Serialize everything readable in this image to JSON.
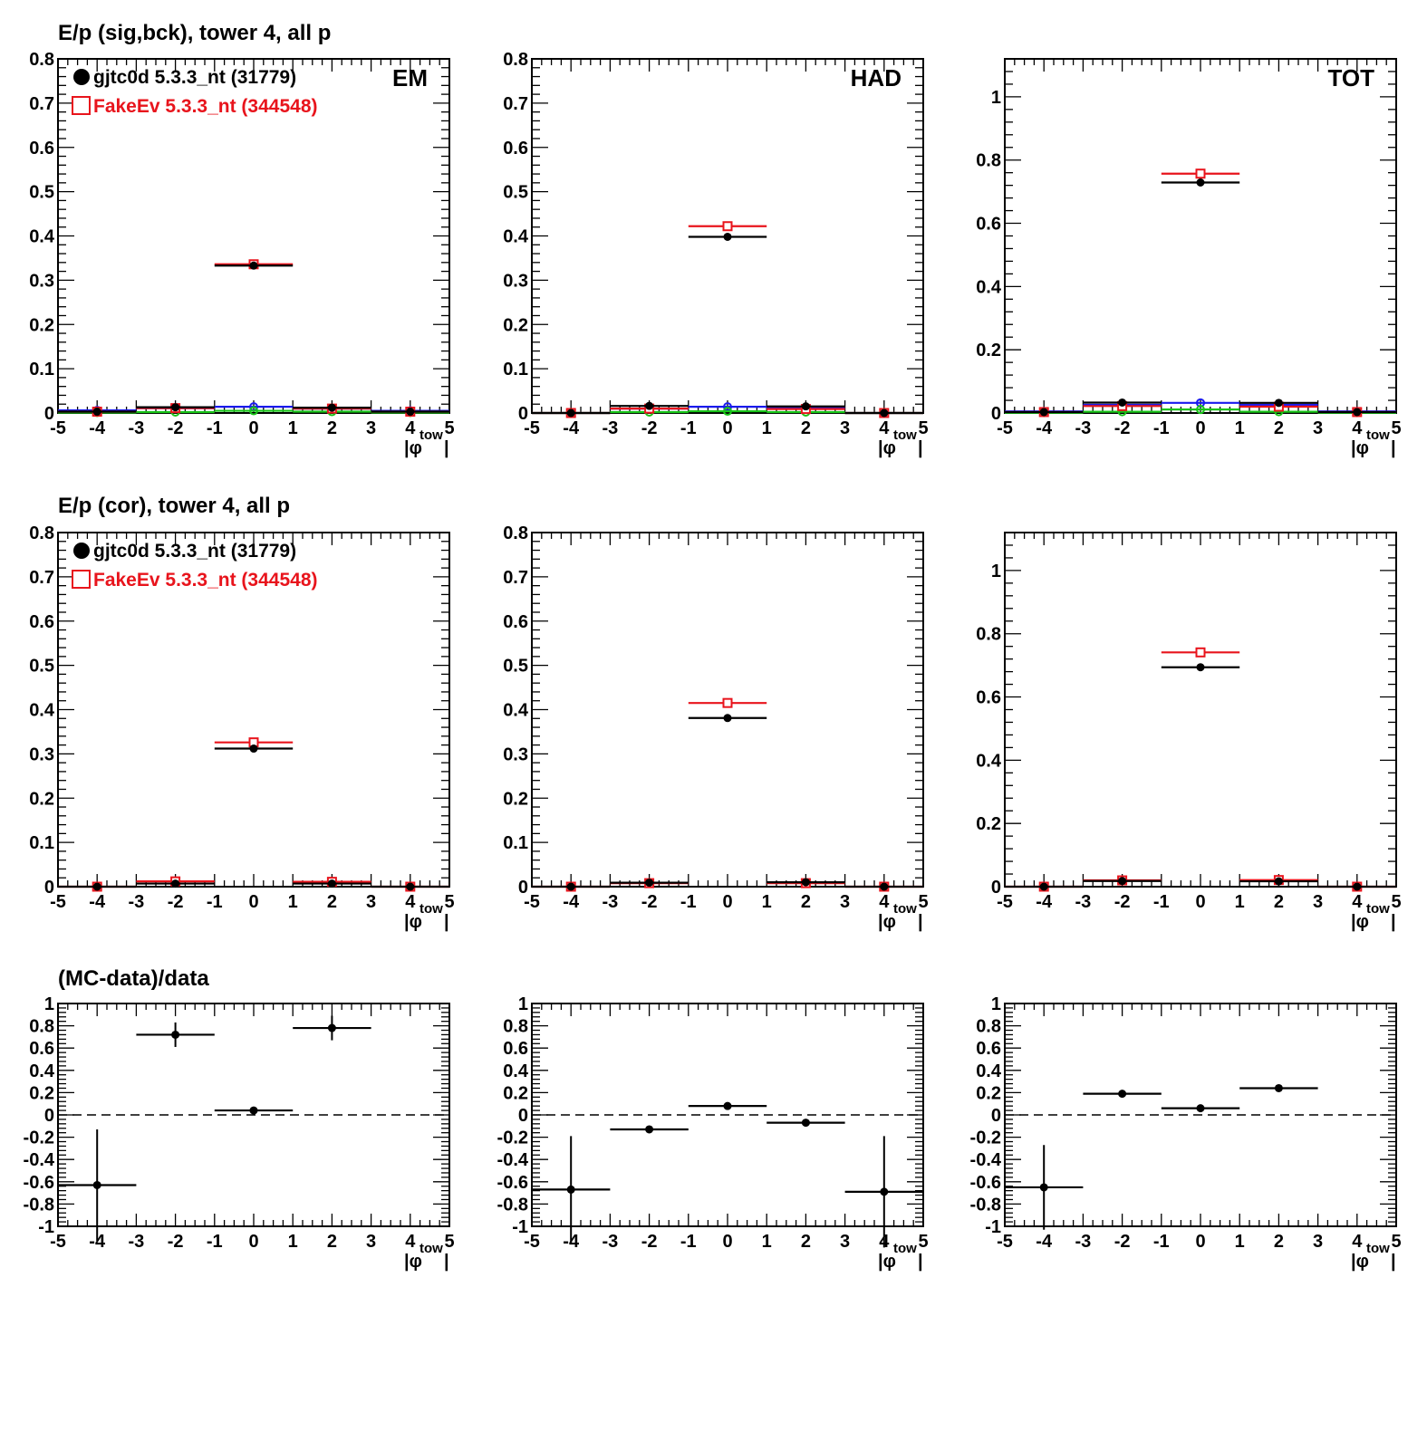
{
  "row_titles": [
    "E/p (sig,bck), tower 4, all p",
    "E/p (cor), tower 4, all p",
    "(MC-data)/data"
  ],
  "legend": {
    "data_label": "gjtc0d 5.3.3_nt (31779)",
    "mc_label": "FakeEv 5.3.3_nt (344548)"
  },
  "colors": {
    "data": "#000000",
    "mc": "#e8141c",
    "blue": "#1a1aee",
    "green": "#18c418",
    "dashed": "#000000"
  },
  "xlabel": {
    "main": "|φ",
    "sub": "tow",
    "close": "|"
  },
  "chart_data": [
    {
      "type": "scatter",
      "panel": "EM, sig/bck",
      "tag": "EM",
      "xlim": [
        -5,
        5
      ],
      "ylim": [
        0,
        0.8
      ],
      "xticks": [
        "-5",
        "-4",
        "-3",
        "-2",
        "-1",
        "0",
        "1",
        "2",
        "3",
        "4",
        "5"
      ],
      "yticks": [
        "0",
        "0.1",
        "0.2",
        "0.3",
        "0.4",
        "0.5",
        "0.6",
        "0.7",
        "0.8"
      ],
      "x": [
        -4,
        -2,
        0,
        2,
        4
      ],
      "series": [
        {
          "name": "gjtc0d 5.3.3_nt (31779)",
          "values": [
            0.003,
            0.013,
            0.333,
            0.012,
            0.003
          ]
        },
        {
          "name": "FakeEv 5.3.3_nt (344548)",
          "values": [
            0.003,
            0.011,
            0.336,
            0.01,
            0.003
          ]
        },
        {
          "values": [
            0.006,
            0.011,
            0.014,
            0.01,
            0.005
          ]
        },
        {
          "values": [
            0.001,
            0.002,
            0.005,
            0.003,
            0.001
          ]
        }
      ]
    },
    {
      "type": "scatter",
      "panel": "HAD, sig/bck",
      "tag": "HAD",
      "xlim": [
        -5,
        5
      ],
      "ylim": [
        0,
        0.8
      ],
      "xticks": [
        "-5",
        "-4",
        "-3",
        "-2",
        "-1",
        "0",
        "1",
        "2",
        "3",
        "4",
        "5"
      ],
      "yticks": [
        "0",
        "0.1",
        "0.2",
        "0.3",
        "0.4",
        "0.5",
        "0.6",
        "0.7",
        "0.8"
      ],
      "x": [
        -4,
        -2,
        0,
        2,
        4
      ],
      "series": [
        {
          "name": "gjtc0d 5.3.3_nt (31779)",
          "values": [
            0.0,
            0.016,
            0.398,
            0.015,
            0.0
          ]
        },
        {
          "name": "FakeEv 5.3.3_nt (344548)",
          "values": [
            0.0,
            0.01,
            0.422,
            0.009,
            0.0
          ]
        },
        {
          "values": [
            0.0,
            0.01,
            0.014,
            0.012,
            0.0
          ]
        },
        {
          "values": [
            0.0,
            0.002,
            0.004,
            0.002,
            0.0
          ]
        }
      ]
    },
    {
      "type": "scatter",
      "panel": "TOT, sig/bck",
      "tag": "TOT",
      "xlim": [
        -5,
        5
      ],
      "ylim": [
        0,
        1.12
      ],
      "xticks": [
        "-5",
        "-4",
        "-3",
        "-2",
        "-1",
        "0",
        "1",
        "2",
        "3",
        "4",
        "5"
      ],
      "yticks": [
        "0",
        "0.2",
        "0.4",
        "0.6",
        "0.8",
        "1"
      ],
      "ytick_values": [
        0,
        0.2,
        0.4,
        0.6,
        0.8,
        1.0
      ],
      "x": [
        -4,
        -2,
        0,
        2,
        4
      ],
      "series": [
        {
          "name": "gjtc0d 5.3.3_nt (31779)",
          "values": [
            0.003,
            0.033,
            0.729,
            0.032,
            0.003
          ]
        },
        {
          "name": "FakeEv 5.3.3_nt (344548)",
          "values": [
            0.003,
            0.022,
            0.757,
            0.02,
            0.003
          ]
        },
        {
          "values": [
            0.005,
            0.026,
            0.032,
            0.026,
            0.005
          ]
        },
        {
          "values": [
            0.001,
            0.004,
            0.011,
            0.004,
            0.001
          ]
        }
      ]
    },
    {
      "type": "scatter",
      "panel": "EM, cor",
      "xlim": [
        -5,
        5
      ],
      "ylim": [
        0,
        0.8
      ],
      "xticks": [
        "-5",
        "-4",
        "-3",
        "-2",
        "-1",
        "0",
        "1",
        "2",
        "3",
        "4",
        "5"
      ],
      "yticks": [
        "0",
        "0.1",
        "0.2",
        "0.3",
        "0.4",
        "0.5",
        "0.6",
        "0.7",
        "0.8"
      ],
      "x": [
        -4,
        -2,
        0,
        2,
        4
      ],
      "series": [
        {
          "name": "gjtc0d 5.3.3_nt (31779)",
          "values": [
            0.0,
            0.007,
            0.312,
            0.007,
            0.0
          ]
        },
        {
          "name": "FakeEv 5.3.3_nt (344548)",
          "values": [
            0.0,
            0.012,
            0.326,
            0.011,
            0.0
          ]
        }
      ]
    },
    {
      "type": "scatter",
      "panel": "HAD, cor",
      "xlim": [
        -5,
        5
      ],
      "ylim": [
        0,
        0.8
      ],
      "xticks": [
        "-5",
        "-4",
        "-3",
        "-2",
        "-1",
        "0",
        "1",
        "2",
        "3",
        "4",
        "5"
      ],
      "yticks": [
        "0",
        "0.1",
        "0.2",
        "0.3",
        "0.4",
        "0.5",
        "0.6",
        "0.7",
        "0.8"
      ],
      "x": [
        -4,
        -2,
        0,
        2,
        4
      ],
      "series": [
        {
          "name": "gjtc0d 5.3.3_nt (31779)",
          "values": [
            0.0,
            0.009,
            0.381,
            0.01,
            0.0
          ]
        },
        {
          "name": "FakeEv 5.3.3_nt (344548)",
          "values": [
            0.0,
            0.008,
            0.415,
            0.008,
            0.0
          ]
        }
      ]
    },
    {
      "type": "scatter",
      "panel": "TOT, cor",
      "xlim": [
        -5,
        5
      ],
      "ylim": [
        0,
        1.12
      ],
      "xticks": [
        "-5",
        "-4",
        "-3",
        "-2",
        "-1",
        "0",
        "1",
        "2",
        "3",
        "4",
        "5"
      ],
      "yticks": [
        "0",
        "0.2",
        "0.4",
        "0.6",
        "0.8",
        "1"
      ],
      "ytick_values": [
        0,
        0.2,
        0.4,
        0.6,
        0.8,
        1.0
      ],
      "x": [
        -4,
        -2,
        0,
        2,
        4
      ],
      "series": [
        {
          "name": "gjtc0d 5.3.3_nt (31779)",
          "values": [
            0.0,
            0.018,
            0.694,
            0.017,
            0.0
          ]
        },
        {
          "name": "FakeEv 5.3.3_nt (344548)",
          "values": [
            0.0,
            0.02,
            0.741,
            0.021,
            0.0
          ]
        }
      ]
    },
    {
      "type": "scatter",
      "panel": "EM, ratio",
      "xlim": [
        -5,
        5
      ],
      "ylim": [
        -1,
        1
      ],
      "xticks": [
        "-5",
        "-4",
        "-3",
        "-2",
        "-1",
        "0",
        "1",
        "2",
        "3",
        "4",
        "5"
      ],
      "yticks": [
        "-1",
        "-0.8",
        "-0.6",
        "-0.4",
        "-0.2",
        "0",
        "0.2",
        "0.4",
        "0.6",
        "0.8",
        "1"
      ],
      "reference_line": 0,
      "points": [
        {
          "x": -4,
          "y": -0.63,
          "err": 0.5
        },
        {
          "x": -2,
          "y": 0.72,
          "err": 0.11
        },
        {
          "x": 0,
          "y": 0.04,
          "err": 0.01
        },
        {
          "x": 2,
          "y": 0.78,
          "err": 0.11
        }
      ]
    },
    {
      "type": "scatter",
      "panel": "HAD, ratio",
      "xlim": [
        -5,
        5
      ],
      "ylim": [
        -1,
        1
      ],
      "xticks": [
        "-5",
        "-4",
        "-3",
        "-2",
        "-1",
        "0",
        "1",
        "2",
        "3",
        "4",
        "5"
      ],
      "yticks": [
        "-1",
        "-0.8",
        "-0.6",
        "-0.4",
        "-0.2",
        "0",
        "0.2",
        "0.4",
        "0.6",
        "0.8",
        "1"
      ],
      "reference_line": 0,
      "points": [
        {
          "x": -4,
          "y": -0.67,
          "err": 0.48
        },
        {
          "x": -2,
          "y": -0.13,
          "err": 0.01
        },
        {
          "x": 0,
          "y": 0.08,
          "err": 0.01
        },
        {
          "x": 2,
          "y": -0.07,
          "err": 0.01
        },
        {
          "x": 4,
          "y": -0.69,
          "err": 0.5
        }
      ]
    },
    {
      "type": "scatter",
      "panel": "TOT, ratio",
      "xlim": [
        -5,
        5
      ],
      "ylim": [
        -1,
        1
      ],
      "xticks": [
        "-5",
        "-4",
        "-3",
        "-2",
        "-1",
        "0",
        "1",
        "2",
        "3",
        "4",
        "5"
      ],
      "yticks": [
        "-1",
        "-0.8",
        "-0.6",
        "-0.4",
        "-0.2",
        "0",
        "0.2",
        "0.4",
        "0.6",
        "0.8",
        "1"
      ],
      "reference_line": 0,
      "points": [
        {
          "x": -4,
          "y": -0.65,
          "err": 0.38
        },
        {
          "x": -2,
          "y": 0.19,
          "err": 0.01
        },
        {
          "x": 0,
          "y": 0.06,
          "err": 0.01
        },
        {
          "x": 2,
          "y": 0.24,
          "err": 0.01
        }
      ]
    }
  ]
}
